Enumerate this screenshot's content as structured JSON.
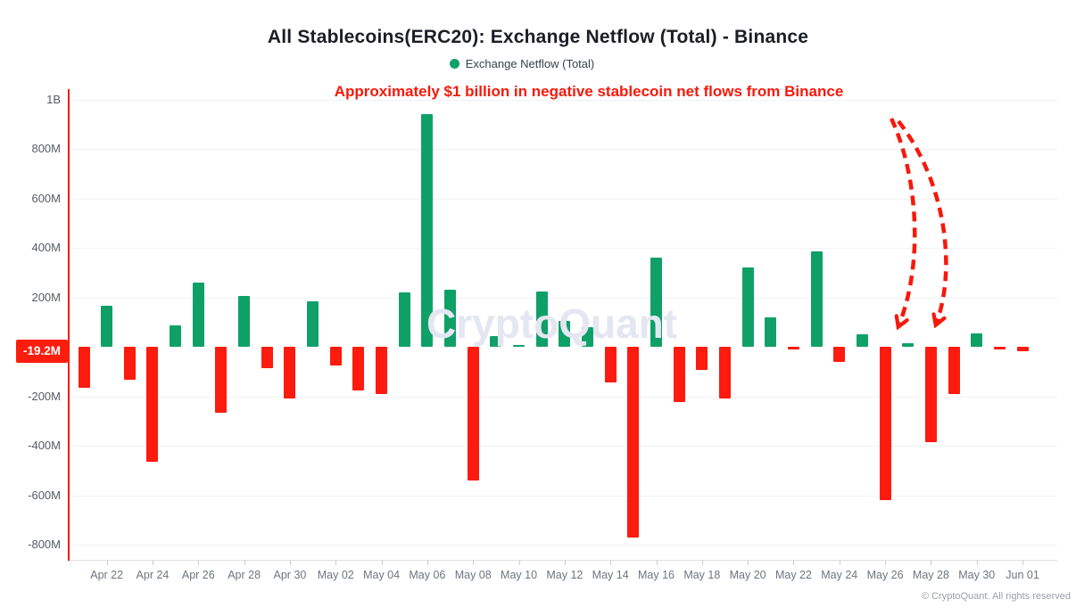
{
  "title": "All Stablecoins(ERC20): Exchange Netflow (Total) - Binance",
  "legend": {
    "label": "Exchange Netflow (Total)",
    "color": "#0fa068"
  },
  "annotation": {
    "text": "Approximately $1 billion in negative stablecoin net flows from Binance",
    "color": "#f6190b",
    "arrow_targets": [
      "May 26",
      "May 28"
    ]
  },
  "current_value_badge": {
    "label": "-19.2M",
    "bg": "#fc1d0d",
    "text_color": "#ffffff"
  },
  "watermark": "CryptoQuant",
  "copyright": "© CryptoQuant. All rights reserved",
  "chart_data": {
    "type": "bar",
    "title": "All Stablecoins(ERC20): Exchange Netflow (Total) - Binance",
    "series_name": "Exchange Netflow (Total)",
    "unit": "USD (M = million, B = billion)",
    "grid": true,
    "legend_position": "top",
    "colors": {
      "positive": "#0fa068",
      "negative": "#fc1b0e"
    },
    "y_axis": {
      "tick_labels": [
        "1B",
        "800M",
        "600M",
        "400M",
        "200M",
        "-200M",
        "-400M",
        "-600M",
        "-800M"
      ],
      "tick_values_m": [
        1000,
        800,
        600,
        400,
        200,
        -200,
        -400,
        -600,
        -800
      ],
      "range_m": [
        -860,
        1040
      ]
    },
    "x_tick_labels": [
      "Apr 22",
      "Apr 24",
      "Apr 26",
      "Apr 28",
      "Apr 30",
      "May 02",
      "May 04",
      "May 06",
      "May 08",
      "May 10",
      "May 12",
      "May 14",
      "May 16",
      "May 18",
      "May 20",
      "May 22",
      "May 24",
      "May 26",
      "May 28",
      "May 30",
      "Jun 01"
    ],
    "points": [
      {
        "date": "Apr 21",
        "value_m": -165
      },
      {
        "date": "Apr 22",
        "value_m": 165
      },
      {
        "date": "Apr 23",
        "value_m": -135
      },
      {
        "date": "Apr 24",
        "value_m": -465
      },
      {
        "date": "Apr 25",
        "value_m": 85
      },
      {
        "date": "Apr 26",
        "value_m": 260
      },
      {
        "date": "Apr 27",
        "value_m": -265
      },
      {
        "date": "Apr 28",
        "value_m": 205
      },
      {
        "date": "Apr 29",
        "value_m": -85
      },
      {
        "date": "Apr 30",
        "value_m": -210
      },
      {
        "date": "May 01",
        "value_m": 185
      },
      {
        "date": "May 02",
        "value_m": -75
      },
      {
        "date": "May 03",
        "value_m": -175
      },
      {
        "date": "May 04",
        "value_m": -190
      },
      {
        "date": "May 05",
        "value_m": 220
      },
      {
        "date": "May 06",
        "value_m": 940
      },
      {
        "date": "May 07",
        "value_m": 230
      },
      {
        "date": "May 08",
        "value_m": -540
      },
      {
        "date": "May 09",
        "value_m": 45
      },
      {
        "date": "May 10",
        "value_m": 5
      },
      {
        "date": "May 11",
        "value_m": 225
      },
      {
        "date": "May 12",
        "value_m": 105
      },
      {
        "date": "May 13",
        "value_m": 80
      },
      {
        "date": "May 14",
        "value_m": -145
      },
      {
        "date": "May 15",
        "value_m": -770
      },
      {
        "date": "May 16",
        "value_m": 360
      },
      {
        "date": "May 17",
        "value_m": -225
      },
      {
        "date": "May 18",
        "value_m": -95
      },
      {
        "date": "May 19",
        "value_m": -210
      },
      {
        "date": "May 20",
        "value_m": 320
      },
      {
        "date": "May 21",
        "value_m": 120
      },
      {
        "date": "May 22",
        "value_m": -10
      },
      {
        "date": "May 23",
        "value_m": 385
      },
      {
        "date": "May 24",
        "value_m": -60
      },
      {
        "date": "May 25",
        "value_m": 50
      },
      {
        "date": "May 26",
        "value_m": -620
      },
      {
        "date": "May 27",
        "value_m": 15
      },
      {
        "date": "May 28",
        "value_m": -385
      },
      {
        "date": "May 29",
        "value_m": -190
      },
      {
        "date": "May 30",
        "value_m": 55
      },
      {
        "date": "May 31",
        "value_m": -8
      },
      {
        "date": "Jun 01",
        "value_m": -19.2
      }
    ]
  }
}
